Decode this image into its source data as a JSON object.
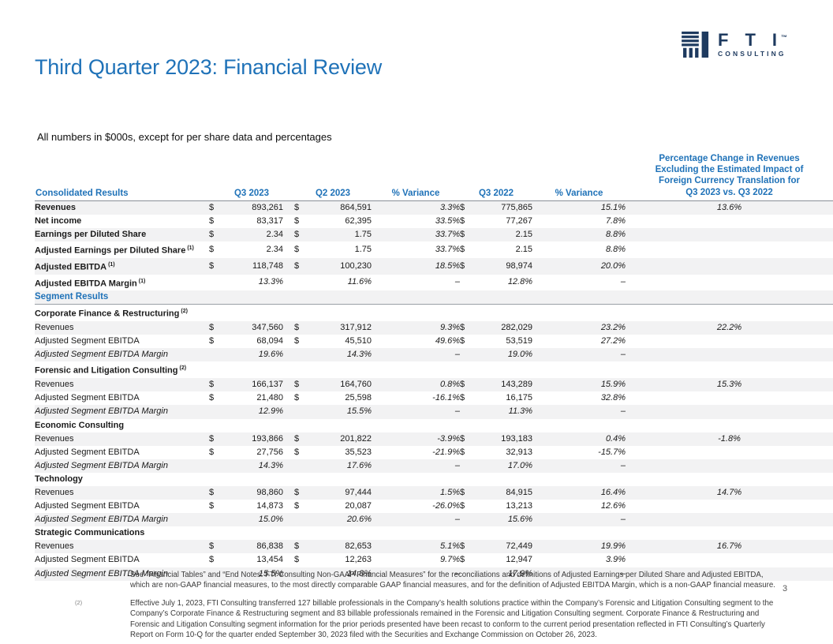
{
  "page": {
    "title": "Third Quarter 2023: Financial Review",
    "subtitle": "All numbers in $000s, except for per share data and percentages",
    "page_number": "3"
  },
  "logo": {
    "letters": "FTI",
    "trademark": "™",
    "subtext": "CONSULTING"
  },
  "colors": {
    "accent_blue": "#1F72B8",
    "logo_navy": "#1E3A5F",
    "row_shade": "#F2F2F3"
  },
  "table": {
    "header": {
      "label": "Consolidated Results",
      "q3_2023": "Q3 2023",
      "q2_2023": "Q2 2023",
      "variance1": "% Variance",
      "q3_2022": "Q3 2022",
      "variance2": "% Variance",
      "fx": "Percentage Change in Revenues\nExcluding the Estimated Impact of\nForeign Currency Translation for\nQ3 2023 vs. Q3 2022"
    },
    "rows": [
      {
        "type": "cons",
        "label": "Revenues",
        "cells": {
          "d1": "$",
          "v1": "893,261",
          "d2": "$",
          "v2": "864,591",
          "pv1": "3.3%",
          "d3": "$",
          "v3": "775,865",
          "pv2": "15.1%",
          "fx": "13.6%"
        }
      },
      {
        "type": "cons",
        "label": "Net income",
        "cells": {
          "d1": "$",
          "v1": "83,317",
          "d2": "$",
          "v2": "62,395",
          "pv1": "33.5%",
          "d3": "$",
          "v3": "77,267",
          "pv2": "7.8%"
        }
      },
      {
        "type": "cons",
        "label": "Earnings per Diluted Share",
        "cells": {
          "d1": "$",
          "v1": "2.34",
          "d2": "$",
          "v2": "1.75",
          "pv1": "33.7%",
          "d3": "$",
          "v3": "2.15",
          "pv2": "8.8%"
        }
      },
      {
        "type": "cons",
        "label": "Adjusted Earnings per Diluted Share",
        "sup": "(1)",
        "cells": {
          "d1": "$",
          "v1": "2.34",
          "d2": "$",
          "v2": "1.75",
          "pv1": "33.7%",
          "d3": "$",
          "v3": "2.15",
          "pv2": "8.8%"
        }
      },
      {
        "type": "cons",
        "label": "Adjusted EBITDA",
        "sup": "(1)",
        "cells": {
          "d1": "$",
          "v1": "118,748",
          "d2": "$",
          "v2": "100,230",
          "pv1": "18.5%",
          "d3": "$",
          "v3": "98,974",
          "pv2": "20.0%"
        }
      },
      {
        "type": "cons-margin",
        "label": "Adjusted EBITDA Margin",
        "sup": "(1)",
        "cells": {
          "v1": "13.3%",
          "v2": "11.6%",
          "pv1": "–",
          "v3": "12.8%",
          "pv2": "–"
        }
      },
      {
        "type": "section",
        "label": "Segment Results"
      },
      {
        "type": "segment",
        "label": "Corporate Finance & Restructuring",
        "sup": "(2)",
        "rule_top": true
      },
      {
        "type": "seg",
        "label": "Revenues",
        "cells": {
          "d1": "$",
          "v1": "347,560",
          "d2": "$",
          "v2": "317,912",
          "pv1": "9.3%",
          "d3": "$",
          "v3": "282,029",
          "pv2": "23.2%",
          "fx": "22.2%"
        }
      },
      {
        "type": "seg",
        "label": "Adjusted Segment EBITDA",
        "cells": {
          "d1": "$",
          "v1": "68,094",
          "d2": "$",
          "v2": "45,510",
          "pv1": "49.6%",
          "d3": "$",
          "v3": "53,519",
          "pv2": "27.2%"
        }
      },
      {
        "type": "seg-margin",
        "label": "Adjusted Segment EBITDA Margin",
        "cells": {
          "v1": "19.6%",
          "v2": "14.3%",
          "pv1": "–",
          "v3": "19.0%",
          "pv2": "–"
        }
      },
      {
        "type": "segment",
        "label": "Forensic and Litigation Consulting",
        "sup": "(2)"
      },
      {
        "type": "seg",
        "label": "Revenues",
        "cells": {
          "d1": "$",
          "v1": "166,137",
          "d2": "$",
          "v2": "164,760",
          "pv1": "0.8%",
          "d3": "$",
          "v3": "143,289",
          "pv2": "15.9%",
          "fx": "15.3%"
        }
      },
      {
        "type": "seg",
        "label": "Adjusted Segment EBITDA",
        "cells": {
          "d1": "$",
          "v1": "21,480",
          "d2": "$",
          "v2": "25,598",
          "pv1": "-16.1%",
          "d3": "$",
          "v3": "16,175",
          "pv2": "32.8%"
        }
      },
      {
        "type": "seg-margin",
        "label": "Adjusted Segment EBITDA Margin",
        "cells": {
          "v1": "12.9%",
          "v2": "15.5%",
          "pv1": "–",
          "v3": "11.3%",
          "pv2": "–"
        }
      },
      {
        "type": "segment",
        "label": "Economic Consulting"
      },
      {
        "type": "seg",
        "label": "Revenues",
        "cells": {
          "d1": "$",
          "v1": "193,866",
          "d2": "$",
          "v2": "201,822",
          "pv1": "-3.9%",
          "d3": "$",
          "v3": "193,183",
          "pv2": "0.4%",
          "fx": "-1.8%"
        }
      },
      {
        "type": "seg",
        "label": "Adjusted Segment EBITDA",
        "cells": {
          "d1": "$",
          "v1": "27,756",
          "d2": "$",
          "v2": "35,523",
          "pv1": "-21.9%",
          "d3": "$",
          "v3": "32,913",
          "pv2": "-15.7%"
        }
      },
      {
        "type": "seg-margin",
        "label": "Adjusted Segment EBITDA Margin",
        "cells": {
          "v1": "14.3%",
          "v2": "17.6%",
          "pv1": "–",
          "v3": "17.0%",
          "pv2": "–"
        }
      },
      {
        "type": "segment",
        "label": "Technology"
      },
      {
        "type": "seg",
        "label": "Revenues",
        "cells": {
          "d1": "$",
          "v1": "98,860",
          "d2": "$",
          "v2": "97,444",
          "pv1": "1.5%",
          "d3": "$",
          "v3": "84,915",
          "pv2": "16.4%",
          "fx": "14.7%"
        }
      },
      {
        "type": "seg",
        "label": "Adjusted Segment EBITDA",
        "cells": {
          "d1": "$",
          "v1": "14,873",
          "d2": "$",
          "v2": "20,087",
          "pv1": "-26.0%",
          "d3": "$",
          "v3": "13,213",
          "pv2": "12.6%"
        }
      },
      {
        "type": "seg-margin",
        "label": "Adjusted Segment EBITDA Margin",
        "cells": {
          "v1": "15.0%",
          "v2": "20.6%",
          "pv1": "–",
          "v3": "15.6%",
          "pv2": "–"
        }
      },
      {
        "type": "segment",
        "label": "Strategic Communications"
      },
      {
        "type": "seg",
        "label": "Revenues",
        "cells": {
          "d1": "$",
          "v1": "86,838",
          "d2": "$",
          "v2": "82,653",
          "pv1": "5.1%",
          "d3": "$",
          "v3": "72,449",
          "pv2": "19.9%",
          "fx": "16.7%"
        }
      },
      {
        "type": "seg",
        "label": "Adjusted Segment EBITDA",
        "cells": {
          "d1": "$",
          "v1": "13,454",
          "d2": "$",
          "v2": "12,263",
          "pv1": "9.7%",
          "d3": "$",
          "v3": "12,947",
          "pv2": "3.9%"
        }
      },
      {
        "type": "seg-margin",
        "label": "Adjusted Segment EBITDA Margin",
        "cells": {
          "v1": "15.5%",
          "v2": "14.8%",
          "pv1": "–",
          "v3": "17.9%",
          "pv2": "–"
        }
      }
    ]
  },
  "footnotes": [
    {
      "marker": "(1)",
      "text": "See “Financial Tables” and “End Notes: FTI Consulting Non-GAAP Financial Measures” for the reconciliations and definitions of Adjusted Earnings per Diluted Share and Adjusted EBITDA, which are non-GAAP financial measures, to the most directly comparable GAAP financial measures, and for the definition of Adjusted EBITDA Margin, which is a non-GAAP financial measure."
    },
    {
      "marker": "(2)",
      "text": "Effective July 1, 2023, FTI Consulting transferred 127 billable professionals in the Company’s health solutions practice within the Company’s Forensic and Litigation Consulting segment to the Company’s Corporate Finance & Restructuring segment and 83 billable professionals remained in the Forensic and Litigation Consulting segment. Corporate Finance & Restructuring and Forensic and Litigation Consulting segment information for the prior periods presented have been recast to conform to the current period presentation reflected in FTI Consulting’s Quarterly Report on Form 10-Q for the quarter ended September 30, 2023 filed with the Securities and Exchange Commission on October 26, 2023."
    }
  ]
}
